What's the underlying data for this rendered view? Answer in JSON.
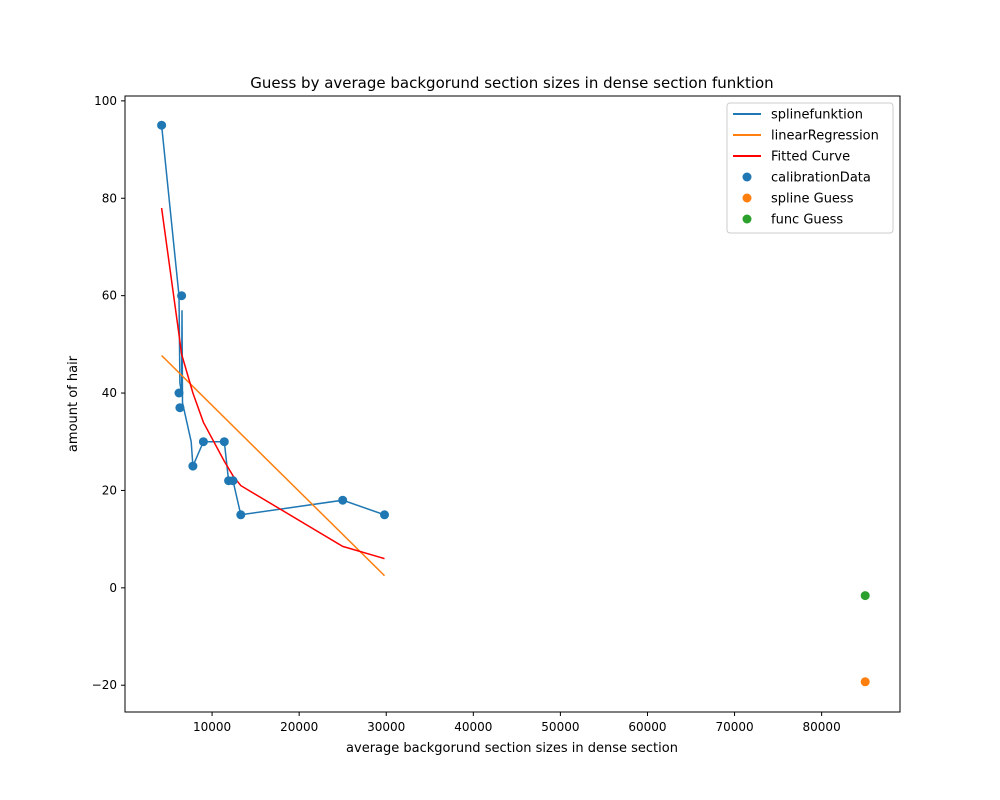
{
  "chart_data": {
    "type": "scatter",
    "title": "Guess by average backgorund section sizes in dense section funktion",
    "xlabel": "average backgorund section sizes in dense section",
    "ylabel": "amount of hair",
    "xlim": [
      0,
      89000
    ],
    "ylim": [
      -25.5,
      101
    ],
    "xticks": [
      10000,
      20000,
      30000,
      40000,
      50000,
      60000,
      70000,
      80000
    ],
    "xtick_labels": [
      "10000",
      "20000",
      "30000",
      "40000",
      "50000",
      "60000",
      "70000",
      "80000"
    ],
    "yticks": [
      -20,
      0,
      20,
      40,
      60,
      80,
      100
    ],
    "ytick_labels": [
      "−20",
      "0",
      "20",
      "40",
      "60",
      "80",
      "100"
    ],
    "grid": false,
    "legend_position": "top-right",
    "series": [
      {
        "name": "splinefunktion",
        "kind": "line",
        "color": "#1f77b4",
        "x": [
          4200,
          6200,
          6300,
          6500,
          6550,
          6600,
          7600,
          7800,
          9000,
          11400,
          11900,
          12400,
          13300,
          25000,
          29800
        ],
        "y": [
          95,
          60,
          42,
          40,
          57,
          38,
          30,
          25,
          30,
          30,
          22,
          22,
          15,
          18,
          15
        ]
      },
      {
        "name": "linearRegression",
        "kind": "line",
        "color": "#ff7f0e",
        "x": [
          4200,
          29800
        ],
        "y": [
          47.7,
          2.5
        ]
      },
      {
        "name": "Fitted Curve",
        "kind": "line",
        "color": "#ff0000",
        "x": [
          4200,
          6200,
          6500,
          7800,
          9000,
          11400,
          12400,
          13300,
          25000,
          29800
        ],
        "y": [
          78,
          52,
          48,
          40,
          34,
          26,
          23,
          21,
          8.5,
          6
        ]
      },
      {
        "name": "calibrationData",
        "kind": "scatter",
        "color": "#1f77b4",
        "x": [
          4200,
          6200,
          6300,
          6500,
          7800,
          9000,
          11400,
          11900,
          12400,
          13300,
          25000,
          29800
        ],
        "y": [
          95,
          40,
          37,
          60,
          25,
          30,
          30,
          22,
          22,
          15,
          18,
          15
        ]
      },
      {
        "name": "spline Guess",
        "kind": "scatter",
        "color": "#ff7f0e",
        "x": [
          85000
        ],
        "y": [
          -19.3
        ]
      },
      {
        "name": "func Guess",
        "kind": "scatter",
        "color": "#2ca02c",
        "x": [
          85000
        ],
        "y": [
          -1.6
        ]
      }
    ]
  }
}
